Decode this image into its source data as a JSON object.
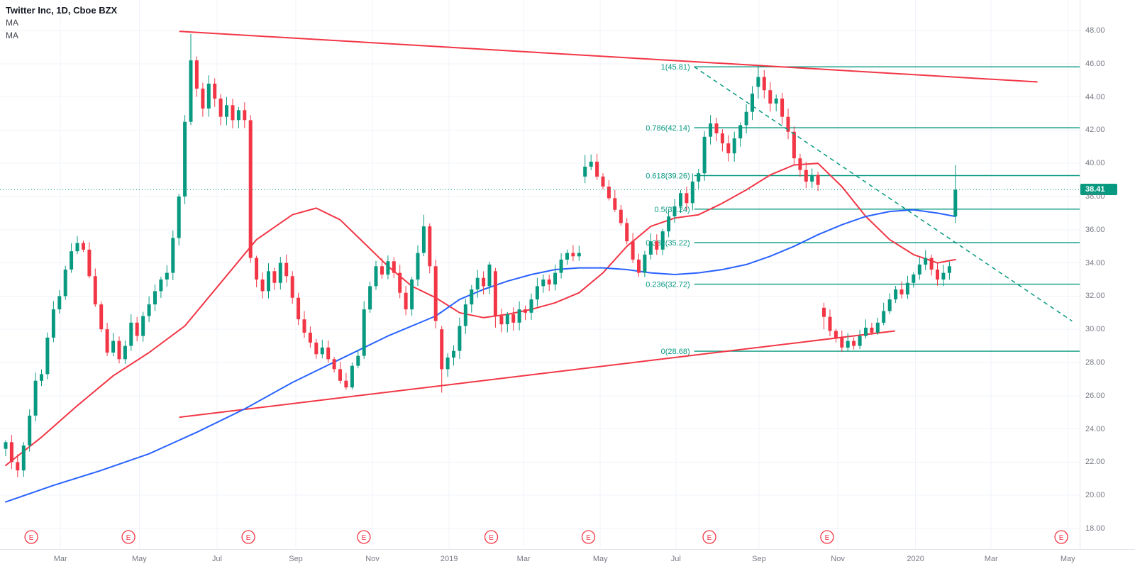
{
  "legend": {
    "title": "Twitter Inc, 1D, Cboe BZX",
    "indicators": [
      "MA",
      "MA"
    ]
  },
  "price_axis": {
    "ticks": [
      "48.00",
      "46.00",
      "44.00",
      "42.00",
      "40.00",
      "38.00",
      "36.00",
      "34.00",
      "32.00",
      "30.00",
      "28.00",
      "26.00",
      "24.00",
      "22.00",
      "20.00",
      "18.00"
    ],
    "current_price": "38.41"
  },
  "time_axis": {
    "ticks": [
      {
        "label": "Mar",
        "pos": 0.056
      },
      {
        "label": "May",
        "pos": 0.129
      },
      {
        "label": "Jul",
        "pos": 0.201
      },
      {
        "label": "Sep",
        "pos": 0.274
      },
      {
        "label": "Nov",
        "pos": 0.345
      },
      {
        "label": "2019",
        "pos": 0.416
      },
      {
        "label": "Mar",
        "pos": 0.485
      },
      {
        "label": "May",
        "pos": 0.556
      },
      {
        "label": "Jul",
        "pos": 0.626
      },
      {
        "label": "Sep",
        "pos": 0.703
      },
      {
        "label": "Nov",
        "pos": 0.776
      },
      {
        "label": "2020",
        "pos": 0.848
      },
      {
        "label": "Mar",
        "pos": 0.918
      },
      {
        "label": "May",
        "pos": 0.989
      }
    ]
  },
  "chart_data": {
    "type": "candlestick",
    "symbol": "Twitter Inc",
    "interval": "1D",
    "exchange": "Cboe BZX",
    "title": "Twitter Inc, 1D, Cboe BZX",
    "ylim": [
      18,
      48
    ],
    "grid": true,
    "current_price": 38.41,
    "closes": [
      23.2,
      22.0,
      21.5,
      23.0,
      24.8,
      26.9,
      27.3,
      29.5,
      31.2,
      32.0,
      33.6,
      34.7,
      35.2,
      34.8,
      33.2,
      31.5,
      30.0,
      28.6,
      29.3,
      28.2,
      29.0,
      30.4,
      29.6,
      30.8,
      31.5,
      32.3,
      33.0,
      33.4,
      35.5,
      38.0,
      42.5,
      46.2,
      44.5,
      43.3,
      44.8,
      43.9,
      42.8,
      43.5,
      42.6,
      43.2,
      42.6,
      34.3,
      33.0,
      32.3,
      33.5,
      32.8,
      34.0,
      33.2,
      31.9,
      30.6,
      29.8,
      29.2,
      28.5,
      28.9,
      28.2,
      27.6,
      26.9,
      26.5,
      27.8,
      28.4,
      31.2,
      32.6,
      33.8,
      33.3,
      34.1,
      33.4,
      32.2,
      31.2,
      33.0,
      34.6,
      36.2,
      33.8,
      30.5,
      27.6,
      28.3,
      28.7,
      30.2,
      31.5,
      32.4,
      33.1,
      32.6,
      33.9,
      30.8,
      30.3,
      30.9,
      30.4,
      31.2,
      31.0,
      31.8,
      32.6,
      33.0,
      32.7,
      33.4,
      34.2,
      34.6,
      34.4,
      34.6,
      39.8,
      40.1,
      39.2,
      38.6,
      37.9,
      37.2,
      36.4,
      35.3,
      34.2,
      33.4,
      34.5,
      35.3,
      34.8,
      35.9,
      36.8,
      37.4,
      38.2,
      37.6,
      38.9,
      39.4,
      41.6,
      42.4,
      41.8,
      41.2,
      40.6,
      41.5,
      42.3,
      43.1,
      44.2,
      45.2,
      44.4,
      43.6,
      43.9,
      42.8,
      41.9,
      40.3,
      39.6,
      38.9,
      39.3,
      38.7,
      30.75,
      29.9,
      29.5,
      28.9,
      29.3,
      29.0,
      29.6,
      30.1,
      29.8,
      30.4,
      31.1,
      31.8,
      32.4,
      32.1,
      32.8,
      33.3,
      33.9,
      34.3,
      33.6,
      33.0,
      33.4,
      33.8,
      38.41
    ],
    "candle_overrides": {
      "31": [
        42.5,
        47.79,
        42.3,
        46.2
      ],
      "41": [
        42.6,
        42.9,
        34.0,
        34.3
      ],
      "70": [
        34.6,
        36.9,
        34.4,
        36.2
      ],
      "73": [
        30.0,
        30.2,
        26.19,
        27.6
      ],
      "82": [
        33.5,
        33.7,
        30.1,
        30.8
      ],
      "97": [
        39.2,
        40.5,
        38.8,
        39.8
      ],
      "126": [
        44.6,
        45.85,
        43.9,
        45.2
      ],
      "137": [
        31.3,
        31.6,
        30.0,
        30.75
      ],
      "159": [
        36.8,
        39.9,
        36.4,
        38.41
      ]
    },
    "moving_averages": [
      {
        "name": "MA-fast-red",
        "color": "#f23645",
        "points": [
          [
            0,
            21.8
          ],
          [
            6,
            23.5
          ],
          [
            12,
            25.4
          ],
          [
            18,
            27.2
          ],
          [
            24,
            28.6
          ],
          [
            30,
            30.2
          ],
          [
            36,
            32.8
          ],
          [
            42,
            35.4
          ],
          [
            48,
            36.9
          ],
          [
            52,
            37.3
          ],
          [
            56,
            36.6
          ],
          [
            60,
            35.2
          ],
          [
            64,
            33.8
          ],
          [
            68,
            32.6
          ],
          [
            72,
            31.9
          ],
          [
            76,
            31.0
          ],
          [
            80,
            30.7
          ],
          [
            84,
            30.9
          ],
          [
            88,
            31.2
          ],
          [
            92,
            31.6
          ],
          [
            96,
            32.2
          ],
          [
            100,
            33.4
          ],
          [
            104,
            35.0
          ],
          [
            108,
            36.2
          ],
          [
            112,
            36.7
          ],
          [
            116,
            36.9
          ],
          [
            120,
            37.6
          ],
          [
            124,
            38.4
          ],
          [
            128,
            39.3
          ],
          [
            132,
            39.9
          ],
          [
            136,
            40.0
          ],
          [
            140,
            38.6
          ],
          [
            144,
            36.8
          ],
          [
            148,
            35.4
          ],
          [
            152,
            34.5
          ],
          [
            156,
            34.0
          ],
          [
            159,
            34.2
          ]
        ]
      },
      {
        "name": "MA-slow-blue",
        "color": "#2962ff",
        "points": [
          [
            0,
            19.6
          ],
          [
            8,
            20.6
          ],
          [
            16,
            21.5
          ],
          [
            24,
            22.5
          ],
          [
            32,
            23.8
          ],
          [
            40,
            25.2
          ],
          [
            48,
            26.8
          ],
          [
            56,
            28.2
          ],
          [
            64,
            29.6
          ],
          [
            72,
            30.8
          ],
          [
            76,
            31.8
          ],
          [
            80,
            32.4
          ],
          [
            84,
            32.9
          ],
          [
            88,
            33.3
          ],
          [
            92,
            33.6
          ],
          [
            96,
            33.7
          ],
          [
            100,
            33.7
          ],
          [
            104,
            33.6
          ],
          [
            108,
            33.4
          ],
          [
            112,
            33.3
          ],
          [
            116,
            33.4
          ],
          [
            120,
            33.6
          ],
          [
            124,
            33.9
          ],
          [
            128,
            34.4
          ],
          [
            132,
            35.0
          ],
          [
            136,
            35.7
          ],
          [
            140,
            36.3
          ],
          [
            144,
            36.8
          ],
          [
            148,
            37.1
          ],
          [
            152,
            37.2
          ],
          [
            156,
            37.0
          ],
          [
            159,
            36.8
          ]
        ]
      }
    ],
    "fib_levels": [
      {
        "label": "1(45.81)",
        "price": 45.81
      },
      {
        "label": "0.786(42.14)",
        "price": 42.14
      },
      {
        "label": "0.618(39.26)",
        "price": 39.26
      },
      {
        "label": "0.5(37.24)",
        "price": 37.24
      },
      {
        "label": "0.382(35.22)",
        "price": 35.22
      },
      {
        "label": "0.236(32.72)",
        "price": 32.72
      },
      {
        "label": "0(28.68)",
        "price": 28.68
      }
    ],
    "fib_start": 0.643,
    "trendlines": [
      {
        "name": "upper-resistance-trendline",
        "color": "#f23645",
        "x1": 0.166,
        "p1": 47.95,
        "x2": 0.961,
        "p2": 44.9,
        "dash": false,
        "above": false
      },
      {
        "name": "lower-support-trendline",
        "color": "#f23645",
        "x1": 0.166,
        "p1": 24.7,
        "x2": 0.829,
        "p2": 29.9,
        "dash": false,
        "above": false
      },
      {
        "name": "descending-dashed-trendline",
        "color": "#089981",
        "x1": 0.643,
        "p1": 45.81,
        "x2": 0.993,
        "p2": 30.5,
        "dash": true,
        "above": true
      }
    ],
    "earnings_markers": {
      "symbol": "E",
      "positions": [
        0.029,
        0.119,
        0.23,
        0.337,
        0.455,
        0.545,
        0.657,
        0.766,
        0.983
      ]
    }
  },
  "colors": {
    "up": "#089981",
    "down": "#f23645",
    "grid": "#f0f3fa",
    "axis_text": "#787b86",
    "fib": "#089981",
    "price_label_bg": "#089981",
    "earnings": "#f23645"
  }
}
